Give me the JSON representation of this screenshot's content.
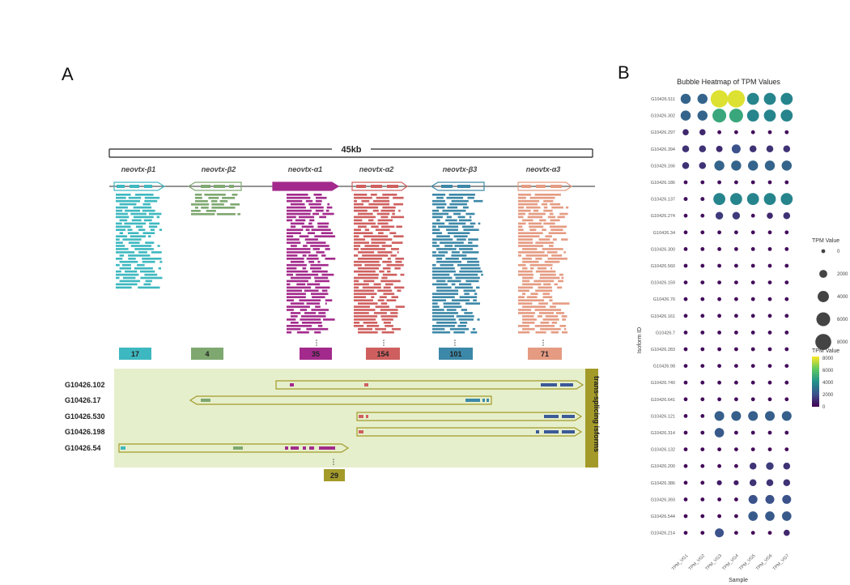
{
  "panels": {
    "a": "A",
    "b": "B"
  },
  "scale_label": "45kb",
  "colors": {
    "b1": "#3eb8c0",
    "b2": "#7ea870",
    "a1": "#a32a8c",
    "a2": "#cf5f5f",
    "b3": "#3c88a8",
    "a3": "#e59b82",
    "box": "#e6efcc",
    "side": "#a39a2a"
  },
  "genes": [
    {
      "name": "neovtx-β1",
      "count": "17"
    },
    {
      "name": "neovtx-β2",
      "count": "4"
    },
    {
      "name": "neovtx-α1",
      "count": "35"
    },
    {
      "name": "neovtx-α2",
      "count": "154"
    },
    {
      "name": "neovtx-β3",
      "count": "101"
    },
    {
      "name": "neovtx-α3",
      "count": "71"
    }
  ],
  "isoforms": [
    "G10426.102",
    "G10426.17",
    "G10426.530",
    "G10426.198",
    "G10426.54"
  ],
  "isoform_count": "29",
  "side_label": "trans-splicing isforms",
  "chart_data": {
    "type": "heatmap",
    "title": "Bubble Heatmap of TPM Values",
    "xlabel": "Sample",
    "ylabel": "Isoform ID",
    "x": [
      "TPM_VG1",
      "TPM_VG2",
      "TPM_VG3",
      "TPM_VG4",
      "TPM_VG5",
      "TPM_VG6",
      "TPM_VG7"
    ],
    "y": [
      "G10426.511",
      "G10426.302",
      "G10426.297",
      "G10426.394",
      "G10426.166",
      "G10426.186",
      "G10426.137",
      "G10426.274",
      "G10426.34",
      "G10426.300",
      "G10426.560",
      "G10426.159",
      "G10426.76",
      "G10426.161",
      "G10426.7",
      "G10426.283",
      "G10426.98",
      "G10426.740",
      "G10426.641",
      "G10426.121",
      "G10426.314",
      "G10426.132",
      "G10426.200",
      "G10426.386",
      "G10426.393",
      "G10426.544",
      "G10426.214"
    ],
    "values": [
      [
        3200,
        3200,
        9500,
        9500,
        4500,
        4500,
        4500
      ],
      [
        3200,
        3200,
        6000,
        6000,
        4500,
        4500,
        4500
      ],
      [
        1200,
        1200,
        300,
        300,
        300,
        300,
        300
      ],
      [
        1500,
        1500,
        1300,
        2500,
        1500,
        1500,
        1500
      ],
      [
        1500,
        1500,
        3200,
        3200,
        3200,
        3200,
        3200
      ],
      [
        400,
        400,
        400,
        400,
        400,
        400,
        400
      ],
      [
        500,
        500,
        4500,
        4500,
        4500,
        4500,
        4500
      ],
      [
        400,
        400,
        1800,
        1800,
        400,
        1200,
        1500
      ],
      [
        300,
        300,
        300,
        300,
        300,
        300,
        300
      ],
      [
        300,
        300,
        300,
        300,
        300,
        300,
        300
      ],
      [
        300,
        300,
        300,
        300,
        300,
        300,
        300
      ],
      [
        300,
        300,
        300,
        300,
        300,
        300,
        300
      ],
      [
        300,
        300,
        300,
        300,
        300,
        300,
        300
      ],
      [
        300,
        300,
        300,
        300,
        300,
        300,
        300
      ],
      [
        300,
        300,
        300,
        300,
        300,
        300,
        300
      ],
      [
        300,
        300,
        300,
        300,
        300,
        300,
        300
      ],
      [
        300,
        300,
        300,
        300,
        300,
        300,
        300
      ],
      [
        300,
        300,
        300,
        300,
        300,
        300,
        300
      ],
      [
        300,
        300,
        300,
        300,
        300,
        300,
        300
      ],
      [
        300,
        300,
        3000,
        3000,
        3000,
        3000,
        3000
      ],
      [
        300,
        300,
        2800,
        300,
        300,
        300,
        300
      ],
      [
        200,
        200,
        200,
        200,
        200,
        200,
        200
      ],
      [
        200,
        200,
        200,
        200,
        1500,
        1800,
        1500
      ],
      [
        200,
        200,
        800,
        800,
        1500,
        1500,
        1500
      ],
      [
        200,
        200,
        200,
        200,
        2500,
        2500,
        2500
      ],
      [
        200,
        200,
        200,
        200,
        2800,
        2800,
        2800
      ],
      [
        200,
        200,
        2500,
        200,
        200,
        200,
        1200
      ]
    ],
    "size_legend": {
      "title": "TPM Value",
      "labels": [
        "0",
        "2000",
        "4000",
        "6000",
        "8000"
      ]
    },
    "color_legend": {
      "title": "TPM Value",
      "labels": [
        "8000",
        "6000",
        "4000",
        "2000",
        "0"
      ]
    },
    "colors": [
      "#440154",
      "#3b528b",
      "#21918c",
      "#5ec962",
      "#fde725"
    ]
  }
}
